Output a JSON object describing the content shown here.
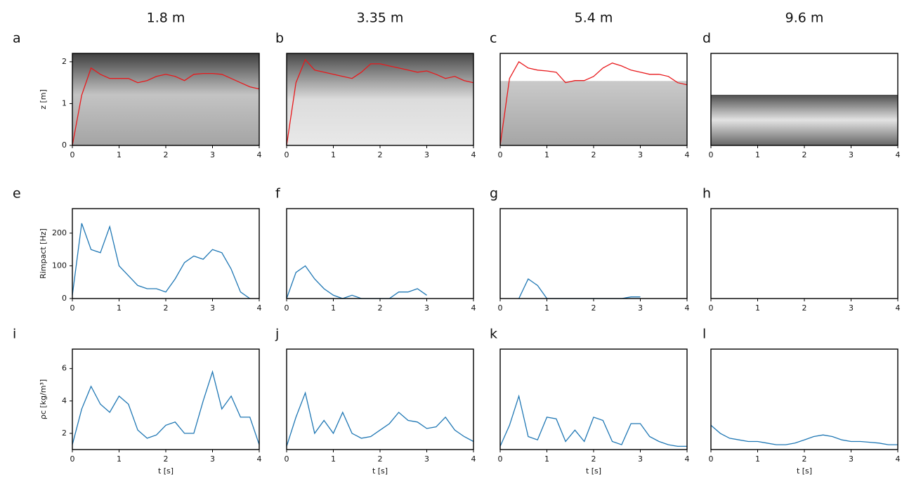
{
  "column_titles": [
    "1.8 m",
    "3.35 m",
    "5.4 m",
    "9.6 m"
  ],
  "chart_data": [
    {
      "type": "line",
      "panel_label": "a",
      "ylabel": "z [m]",
      "xlim": [
        0,
        4
      ],
      "xticks": [
        0,
        1,
        2,
        3,
        4
      ],
      "ylim": [
        0,
        2.2
      ],
      "yticks": [
        0,
        1,
        2
      ],
      "x": [
        0,
        0.2,
        0.4,
        0.6,
        0.8,
        1,
        1.2,
        1.4,
        1.6,
        1.8,
        2,
        2.2,
        2.4,
        2.6,
        2.8,
        3,
        3.2,
        3.4,
        3.6,
        3.8,
        4
      ],
      "series": [
        {
          "color": "#e8191c",
          "values": [
            0,
            1.2,
            1.85,
            1.7,
            1.6,
            1.6,
            1.6,
            1.5,
            1.55,
            1.65,
            1.7,
            1.65,
            1.55,
            1.7,
            1.72,
            1.72,
            1.7,
            1.6,
            1.5,
            1.4,
            1.35
          ]
        }
      ]
    },
    {
      "type": "line",
      "panel_label": "b",
      "xlim": [
        0,
        4
      ],
      "xticks": [
        0,
        1,
        2,
        3,
        4
      ],
      "ylim": [
        0,
        2.2
      ],
      "x": [
        0,
        0.2,
        0.4,
        0.6,
        0.8,
        1,
        1.2,
        1.4,
        1.6,
        1.8,
        2,
        2.2,
        2.4,
        2.6,
        2.8,
        3,
        3.2,
        3.4,
        3.6,
        3.8,
        4
      ],
      "series": [
        {
          "color": "#e8191c",
          "values": [
            0,
            1.5,
            2.05,
            1.8,
            1.75,
            1.7,
            1.65,
            1.6,
            1.75,
            1.95,
            1.95,
            1.9,
            1.85,
            1.8,
            1.75,
            1.78,
            1.7,
            1.6,
            1.65,
            1.55,
            1.5
          ]
        }
      ]
    },
    {
      "type": "line",
      "panel_label": "c",
      "xlim": [
        0,
        4
      ],
      "xticks": [
        0,
        1,
        2,
        3,
        4
      ],
      "ylim": [
        0,
        2.2
      ],
      "x": [
        0,
        0.2,
        0.4,
        0.6,
        0.8,
        1,
        1.2,
        1.4,
        1.6,
        1.8,
        2,
        2.2,
        2.4,
        2.6,
        2.8,
        3,
        3.2,
        3.4,
        3.6,
        3.8,
        4
      ],
      "series": [
        {
          "color": "#e8191c",
          "values": [
            0,
            1.6,
            2.0,
            1.85,
            1.8,
            1.78,
            1.75,
            1.5,
            1.55,
            1.55,
            1.65,
            1.85,
            1.97,
            1.9,
            1.8,
            1.75,
            1.7,
            1.7,
            1.65,
            1.5,
            1.45
          ]
        }
      ]
    },
    {
      "type": "line",
      "panel_label": "d",
      "xlim": [
        0,
        4
      ],
      "xticks": [
        0,
        1,
        2,
        3,
        4
      ],
      "ylim": [
        0,
        2.2
      ],
      "series": []
    },
    {
      "type": "line",
      "panel_label": "e",
      "ylabel": "Rimpact [Hz]",
      "xlim": [
        0,
        4
      ],
      "xticks": [
        0,
        1,
        2,
        3,
        4
      ],
      "ylim": [
        0,
        275
      ],
      "yticks": [
        0,
        100,
        200
      ],
      "x": [
        0,
        0.2,
        0.4,
        0.6,
        0.8,
        1,
        1.2,
        1.4,
        1.6,
        1.8,
        2,
        2.2,
        2.4,
        2.6,
        2.8,
        3,
        3.2,
        3.4,
        3.6,
        3.8,
        4
      ],
      "series": [
        {
          "color": "#1f77b4",
          "values": [
            10,
            230,
            150,
            140,
            220,
            100,
            70,
            40,
            30,
            30,
            20,
            60,
            110,
            130,
            120,
            150,
            140,
            90,
            20,
            0,
            null
          ]
        }
      ]
    },
    {
      "type": "line",
      "panel_label": "f",
      "xlim": [
        0,
        4
      ],
      "xticks": [
        0,
        1,
        2,
        3,
        4
      ],
      "ylim": [
        0,
        275
      ],
      "x": [
        0,
        0.2,
        0.4,
        0.6,
        0.8,
        1,
        1.2,
        1.4,
        1.6,
        1.8,
        2,
        2.2,
        2.4,
        2.6,
        2.8,
        3,
        3.2,
        3.4,
        3.6,
        3.8,
        4
      ],
      "series": [
        {
          "color": "#1f77b4",
          "values": [
            0,
            80,
            100,
            60,
            30,
            10,
            0,
            10,
            0,
            0,
            0,
            0,
            20,
            20,
            30,
            10,
            null,
            null,
            null,
            null,
            null
          ]
        }
      ]
    },
    {
      "type": "line",
      "panel_label": "g",
      "xlim": [
        0,
        4
      ],
      "xticks": [
        0,
        1,
        2,
        3,
        4
      ],
      "ylim": [
        0,
        275
      ],
      "x": [
        0,
        0.2,
        0.4,
        0.6,
        0.8,
        1,
        1.2,
        1.4,
        1.6,
        1.8,
        2,
        2.2,
        2.4,
        2.6,
        2.8,
        3,
        3.2,
        3.4,
        3.6,
        3.8,
        4
      ],
      "series": [
        {
          "color": "#1f77b4",
          "values": [
            null,
            null,
            0,
            60,
            40,
            0,
            0,
            0,
            0,
            0,
            0,
            0,
            0,
            0,
            5,
            5,
            null,
            null,
            null,
            null,
            null
          ]
        }
      ]
    },
    {
      "type": "line",
      "panel_label": "h",
      "xlim": [
        0,
        4
      ],
      "xticks": [
        0,
        1,
        2,
        3,
        4
      ],
      "ylim": [
        0,
        275
      ],
      "series": []
    },
    {
      "type": "line",
      "panel_label": "i",
      "ylabel": "ρc [kg/m³]",
      "xlabel": "t [s]",
      "xlim": [
        0,
        4
      ],
      "xticks": [
        0,
        1,
        2,
        3,
        4
      ],
      "ylim": [
        1,
        7.2
      ],
      "yticks": [
        2,
        4,
        6
      ],
      "x": [
        0,
        0.2,
        0.4,
        0.6,
        0.8,
        1,
        1.2,
        1.4,
        1.6,
        1.8,
        2,
        2.2,
        2.4,
        2.6,
        2.8,
        3,
        3.2,
        3.4,
        3.6,
        3.8,
        4
      ],
      "series": [
        {
          "color": "#1f77b4",
          "values": [
            1.3,
            3.5,
            4.9,
            3.8,
            3.3,
            4.3,
            3.8,
            2.2,
            1.7,
            1.9,
            2.5,
            2.7,
            2.0,
            2.0,
            4.0,
            5.8,
            3.5,
            4.3,
            3.0,
            3.0,
            1.3
          ]
        }
      ]
    },
    {
      "type": "line",
      "panel_label": "j",
      "xlabel": "t [s]",
      "xlim": [
        0,
        4
      ],
      "xticks": [
        0,
        1,
        2,
        3,
        4
      ],
      "ylim": [
        1,
        7.2
      ],
      "x": [
        0,
        0.2,
        0.4,
        0.6,
        0.8,
        1,
        1.2,
        1.4,
        1.6,
        1.8,
        2,
        2.2,
        2.4,
        2.6,
        2.8,
        3,
        3.2,
        3.4,
        3.6,
        3.8,
        4
      ],
      "series": [
        {
          "color": "#1f77b4",
          "values": [
            1.2,
            3.0,
            4.5,
            2.0,
            2.8,
            2.0,
            3.3,
            2.0,
            1.7,
            1.8,
            2.2,
            2.6,
            3.3,
            2.8,
            2.7,
            2.3,
            2.4,
            3.0,
            2.2,
            1.8,
            1.5
          ]
        }
      ]
    },
    {
      "type": "line",
      "panel_label": "k",
      "xlabel": "t [s]",
      "xlim": [
        0,
        4
      ],
      "xticks": [
        0,
        1,
        2,
        3,
        4
      ],
      "ylim": [
        1,
        7.2
      ],
      "x": [
        0,
        0.2,
        0.4,
        0.6,
        0.8,
        1,
        1.2,
        1.4,
        1.6,
        1.8,
        2,
        2.2,
        2.4,
        2.6,
        2.8,
        3,
        3.2,
        3.4,
        3.6,
        3.8,
        4
      ],
      "series": [
        {
          "color": "#1f77b4",
          "values": [
            1.2,
            2.5,
            4.3,
            1.8,
            1.6,
            3.0,
            2.9,
            1.5,
            2.2,
            1.5,
            3.0,
            2.8,
            1.5,
            1.3,
            2.6,
            2.6,
            1.8,
            1.5,
            1.3,
            1.2,
            1.2
          ]
        }
      ]
    },
    {
      "type": "line",
      "panel_label": "l",
      "xlabel": "t [s]",
      "xlim": [
        0,
        4
      ],
      "xticks": [
        0,
        1,
        2,
        3,
        4
      ],
      "ylim": [
        1,
        7.2
      ],
      "x": [
        0,
        0.2,
        0.4,
        0.6,
        0.8,
        1,
        1.2,
        1.4,
        1.6,
        1.8,
        2,
        2.2,
        2.4,
        2.6,
        2.8,
        3,
        3.2,
        3.4,
        3.6,
        3.8,
        4
      ],
      "series": [
        {
          "color": "#1f77b4",
          "values": [
            2.5,
            2.0,
            1.7,
            1.6,
            1.5,
            1.5,
            1.4,
            1.3,
            1.3,
            1.4,
            1.6,
            1.8,
            1.9,
            1.8,
            1.6,
            1.5,
            1.5,
            1.45,
            1.4,
            1.3,
            1.3
          ]
        }
      ]
    }
  ]
}
